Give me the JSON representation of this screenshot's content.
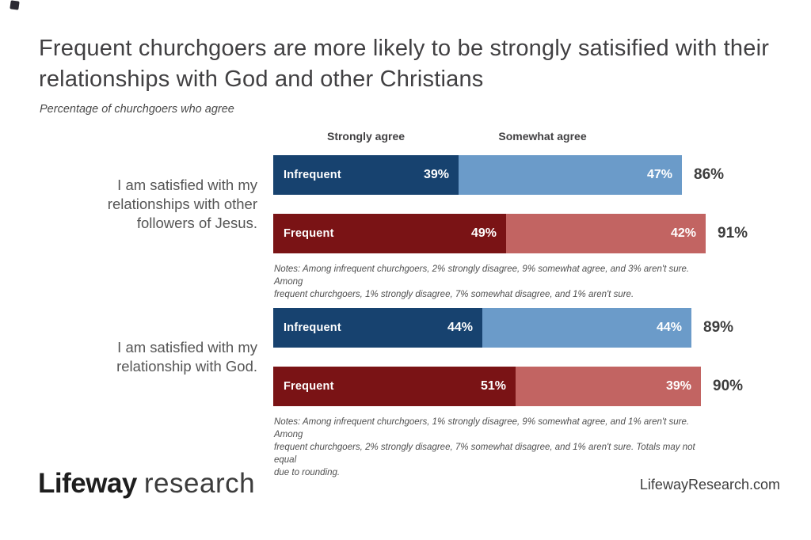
{
  "header": {
    "title": "Frequent churchgoers are more likely to be strongly satisified with their relationships with God and other Christians",
    "subtitle": "Percentage of churchgoers who agree"
  },
  "colors": {
    "strongly_agree_blue": "#17426F",
    "somewhat_agree_blue": "#6B9BC9",
    "strongly_agree_red": "#7A1315",
    "somewhat_agree_red": "#C26462",
    "total_text": "#3D3D3D",
    "body_text": "#555555"
  },
  "chart_data": {
    "type": "bar",
    "orientation": "horizontal",
    "stacked": true,
    "unit": "%",
    "x_max": 100,
    "grid": false,
    "legend_position": "top",
    "column_headers": [
      "Strongly agree",
      "Somewhat agree"
    ],
    "series_names": [
      "Strongly agree",
      "Somewhat agree"
    ],
    "groups": [
      {
        "label": "I am satisfied with my\nrelationships with other\nfollowers of Jesus.",
        "rows": [
          {
            "name": "Infrequent",
            "palette": "blue",
            "strongly_agree": 39,
            "somewhat_agree": 47,
            "total": 86
          },
          {
            "name": "Frequent",
            "palette": "red",
            "strongly_agree": 49,
            "somewhat_agree": 42,
            "total": 91
          }
        ],
        "notes": "Notes: Among infrequent churchgoers, 2% strongly disagree, 9% somewhat agree, and 3% aren't sure. Among\nfrequent churchgoers, 1% strongly disagree, 7% somewhat disagree, and 1% aren't sure."
      },
      {
        "label": "I am satisfied with my\nrelationship with God.",
        "rows": [
          {
            "name": "Infrequent",
            "palette": "blue",
            "strongly_agree": 44,
            "somewhat_agree": 44,
            "total": 89
          },
          {
            "name": "Frequent",
            "palette": "red",
            "strongly_agree": 51,
            "somewhat_agree": 39,
            "total": 90
          }
        ],
        "notes": "Notes: Among infrequent churchgoers, 1% strongly disagree, 9% somewhat agree, and 1% aren't sure. Among\nfrequent churchgoers, 2% strongly disagree, 7% somewhat disagree, and 1% aren't sure. Totals may not equal\ndue to rounding."
      }
    ]
  },
  "footer": {
    "logo_bold": "Lifeway",
    "logo_light": "research",
    "website": "LifewayResearch.com"
  }
}
